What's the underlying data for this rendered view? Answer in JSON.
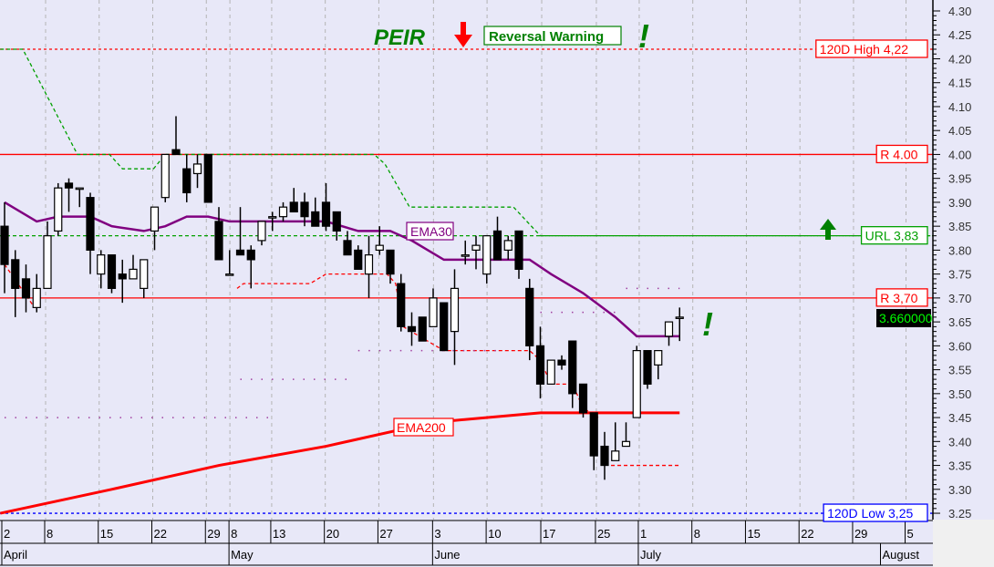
{
  "chart_data": {
    "type": "candlestick",
    "symbol": "PEIR",
    "y_axis": {
      "min": 3.25,
      "max": 4.3,
      "step": 0.05,
      "position": "right",
      "ticks": [
        "4.30",
        "4.25",
        "4.20",
        "4.15",
        "4.10",
        "4.05",
        "4.00",
        "3.95",
        "3.90",
        "3.85",
        "3.80",
        "3.75",
        "3.70",
        "3.65",
        "3.60",
        "3.55",
        "3.50",
        "3.45",
        "3.40",
        "3.35",
        "3.30",
        "3.25"
      ]
    },
    "x_axis": {
      "day_ticks": [
        {
          "label": "2",
          "day": 0
        },
        {
          "label": "8",
          "day": 4
        },
        {
          "label": "15",
          "day": 9
        },
        {
          "label": "22",
          "day": 14
        },
        {
          "label": "29",
          "day": 19
        },
        {
          "label": "8",
          "day": 21.2
        },
        {
          "label": "13",
          "day": 25.1
        },
        {
          "label": "20",
          "day": 30.1
        },
        {
          "label": "27",
          "day": 35.1
        },
        {
          "label": "3",
          "day": 40.2
        },
        {
          "label": "10",
          "day": 45.2
        },
        {
          "label": "17",
          "day": 50.3
        },
        {
          "label": "25",
          "day": 55.4
        },
        {
          "label": "1",
          "day": 59.4
        },
        {
          "label": "8",
          "day": 64.4
        },
        {
          "label": "15",
          "day": 69.4
        },
        {
          "label": "22",
          "day": 74.4
        },
        {
          "label": "29",
          "day": 79.4
        },
        {
          "label": "5",
          "day": 84.3
        }
      ],
      "month_ticks": [
        {
          "label": "April",
          "day": 0
        },
        {
          "label": "May",
          "day": 21.2
        },
        {
          "label": "June",
          "day": 40.2
        },
        {
          "label": "July",
          "day": 59.4
        },
        {
          "label": "August",
          "day": 82
        }
      ]
    },
    "grid": true,
    "candles": [
      [
        3.85,
        3.9,
        3.71,
        3.77
      ],
      [
        3.78,
        3.8,
        3.66,
        3.72
      ],
      [
        3.74,
        3.77,
        3.67,
        3.7
      ],
      [
        3.68,
        3.75,
        3.67,
        3.72
      ],
      [
        3.72,
        3.86,
        3.72,
        3.83
      ],
      [
        3.84,
        3.94,
        3.83,
        3.93
      ],
      [
        3.94,
        3.95,
        3.88,
        3.93
      ],
      [
        3.93,
        3.93,
        3.89,
        3.93
      ],
      [
        3.91,
        3.92,
        3.75,
        3.8
      ],
      [
        3.75,
        3.8,
        3.72,
        3.79
      ],
      [
        3.79,
        3.79,
        3.71,
        3.72
      ],
      [
        3.75,
        3.78,
        3.69,
        3.74
      ],
      [
        3.74,
        3.79,
        3.74,
        3.76
      ],
      [
        3.72,
        3.78,
        3.7,
        3.78
      ],
      [
        3.84,
        3.89,
        3.8,
        3.89
      ],
      [
        3.91,
        4.0,
        3.9,
        4.0
      ],
      [
        4.01,
        4.08,
        4.0,
        4.0
      ],
      [
        3.97,
        4.0,
        3.9,
        3.92
      ],
      [
        3.96,
        4.0,
        3.93,
        3.98
      ],
      [
        4.0,
        4.0,
        3.9,
        3.9
      ],
      [
        3.86,
        3.89,
        3.78,
        3.78
      ],
      [
        3.75,
        3.8,
        3.75,
        3.75
      ],
      [
        3.8,
        3.89,
        3.79,
        3.79
      ],
      [
        3.8,
        3.81,
        3.72,
        3.78
      ],
      [
        3.82,
        3.86,
        3.81,
        3.86
      ],
      [
        3.87,
        3.88,
        3.84,
        3.87
      ],
      [
        3.87,
        3.9,
        3.86,
        3.89
      ],
      [
        3.9,
        3.93,
        3.88,
        3.88
      ],
      [
        3.9,
        3.92,
        3.85,
        3.87
      ],
      [
        3.88,
        3.91,
        3.85,
        3.85
      ],
      [
        3.9,
        3.94,
        3.84,
        3.85
      ],
      [
        3.88,
        3.88,
        3.82,
        3.84
      ],
      [
        3.82,
        3.84,
        3.79,
        3.79
      ],
      [
        3.8,
        3.81,
        3.76,
        3.76
      ],
      [
        3.75,
        3.83,
        3.7,
        3.79
      ],
      [
        3.8,
        3.85,
        3.79,
        3.81
      ],
      [
        3.8,
        3.8,
        3.73,
        3.75
      ],
      [
        3.73,
        3.75,
        3.63,
        3.64
      ],
      [
        3.64,
        3.67,
        3.6,
        3.63
      ],
      [
        3.66,
        3.66,
        3.61,
        3.61
      ],
      [
        3.64,
        3.72,
        3.64,
        3.7
      ],
      [
        3.69,
        3.69,
        3.59,
        3.59
      ],
      [
        3.63,
        3.76,
        3.56,
        3.72
      ],
      [
        3.79,
        3.82,
        3.77,
        3.79
      ],
      [
        3.8,
        3.83,
        3.76,
        3.81
      ],
      [
        3.75,
        3.83,
        3.73,
        3.83
      ],
      [
        3.84,
        3.87,
        3.78,
        3.78
      ],
      [
        3.8,
        3.83,
        3.78,
        3.82
      ],
      [
        3.84,
        3.84,
        3.74,
        3.76
      ],
      [
        3.72,
        3.74,
        3.57,
        3.6
      ],
      [
        3.6,
        3.64,
        3.49,
        3.52
      ],
      [
        3.52,
        3.57,
        3.52,
        3.57
      ],
      [
        3.57,
        3.58,
        3.55,
        3.56
      ],
      [
        3.61,
        3.61,
        3.47,
        3.5
      ],
      [
        3.52,
        3.52,
        3.45,
        3.46
      ],
      [
        3.46,
        3.46,
        3.34,
        3.37
      ],
      [
        3.39,
        3.42,
        3.32,
        3.35
      ],
      [
        3.36,
        3.44,
        3.36,
        3.38
      ],
      [
        3.39,
        3.44,
        3.39,
        3.4
      ],
      [
        3.45,
        3.6,
        3.45,
        3.59
      ],
      [
        3.59,
        3.59,
        3.51,
        3.52
      ],
      [
        3.56,
        3.59,
        3.53,
        3.59
      ],
      [
        3.62,
        3.65,
        3.6,
        3.65
      ],
      [
        3.66,
        3.68,
        3.61,
        3.66
      ]
    ],
    "candle_fields": [
      "open",
      "high",
      "low",
      "close"
    ],
    "ema30": {
      "name": "EMA30",
      "color": "#800080",
      "points": [
        [
          0,
          3.9
        ],
        [
          3,
          3.86
        ],
        [
          5,
          3.87
        ],
        [
          8,
          3.87
        ],
        [
          10,
          3.85
        ],
        [
          13,
          3.84
        ],
        [
          15,
          3.85
        ],
        [
          17,
          3.87
        ],
        [
          19,
          3.87
        ],
        [
          21,
          3.86
        ],
        [
          24,
          3.86
        ],
        [
          27,
          3.86
        ],
        [
          30,
          3.86
        ],
        [
          33,
          3.84
        ],
        [
          36,
          3.84
        ],
        [
          38,
          3.82
        ],
        [
          41,
          3.78
        ],
        [
          44,
          3.78
        ],
        [
          47,
          3.78
        ],
        [
          49,
          3.78
        ],
        [
          51,
          3.75
        ],
        [
          54,
          3.71
        ],
        [
          57,
          3.66
        ],
        [
          59,
          3.62
        ],
        [
          61,
          3.62
        ],
        [
          63,
          3.62
        ]
      ]
    },
    "ema200": {
      "name": "EMA200",
      "color": "#ff0000",
      "points": [
        [
          -0.4,
          3.25
        ],
        [
          10,
          3.3
        ],
        [
          20,
          3.35
        ],
        [
          30,
          3.39
        ],
        [
          40,
          3.44
        ],
        [
          50,
          3.46
        ],
        [
          63,
          3.46
        ]
      ]
    },
    "trailing_stop_green": {
      "color": "#00a000",
      "points": [
        [
          -0.4,
          4.22
        ],
        [
          1.7,
          4.22
        ],
        [
          6.8,
          4.0
        ],
        [
          9.8,
          4.0
        ],
        [
          11,
          3.97
        ],
        [
          13.9,
          3.97
        ],
        [
          15,
          4.0
        ],
        [
          34.5,
          4.0
        ],
        [
          35.5,
          3.98
        ],
        [
          37.8,
          3.89
        ],
        [
          47.5,
          3.89
        ],
        [
          50,
          3.83
        ],
        [
          86.4,
          3.83
        ]
      ]
    },
    "support_red": {
      "color": "#ff0000",
      "segments": [
        [
          [
            0,
            3.77
          ],
          [
            2.8,
            3.68
          ]
        ],
        [
          [
            21.7,
            3.72
          ],
          [
            22.3,
            3.73
          ],
          [
            28.5,
            3.73
          ],
          [
            30,
            3.75
          ],
          [
            35.7,
            3.75
          ],
          [
            36.5,
            3.73
          ],
          [
            37.2,
            3.64
          ],
          [
            41,
            3.59
          ],
          [
            49,
            3.59
          ],
          [
            50,
            3.57
          ],
          [
            51,
            3.52
          ],
          [
            53,
            3.52
          ],
          [
            54,
            3.47
          ],
          [
            55.4,
            3.45
          ]
        ],
        [
          [
            56.6,
            3.35
          ],
          [
            63,
            3.35
          ]
        ]
      ]
    },
    "levels": [
      {
        "label": "120D High 4,22",
        "value": 4.22,
        "color": "#ff0000",
        "style": "dotted"
      },
      {
        "label": "R 4.00",
        "value": 4.0,
        "color": "#ff0000",
        "style": "solid"
      },
      {
        "label": "URL 3,83",
        "value": 3.83,
        "color": "#00a000",
        "style": "dashed"
      },
      {
        "label": "R 3,70",
        "value": 3.7,
        "color": "#ff0000",
        "style": "solid"
      },
      {
        "label": "120D Low 3,25",
        "value": 3.25,
        "color": "#0000ff",
        "style": "dotted"
      }
    ],
    "last_price": "3.660000",
    "annotations": {
      "symbol_label": "PEIR",
      "reversal_warning": "Reversal Warning",
      "exclamation": "!",
      "ema30_label": "EMA30",
      "ema200_label": "EMA200"
    },
    "colors": {
      "background": "#e8e8f8",
      "bullish": "#ffffff",
      "bearish": "#000000",
      "annotation_green": "#008000"
    }
  }
}
